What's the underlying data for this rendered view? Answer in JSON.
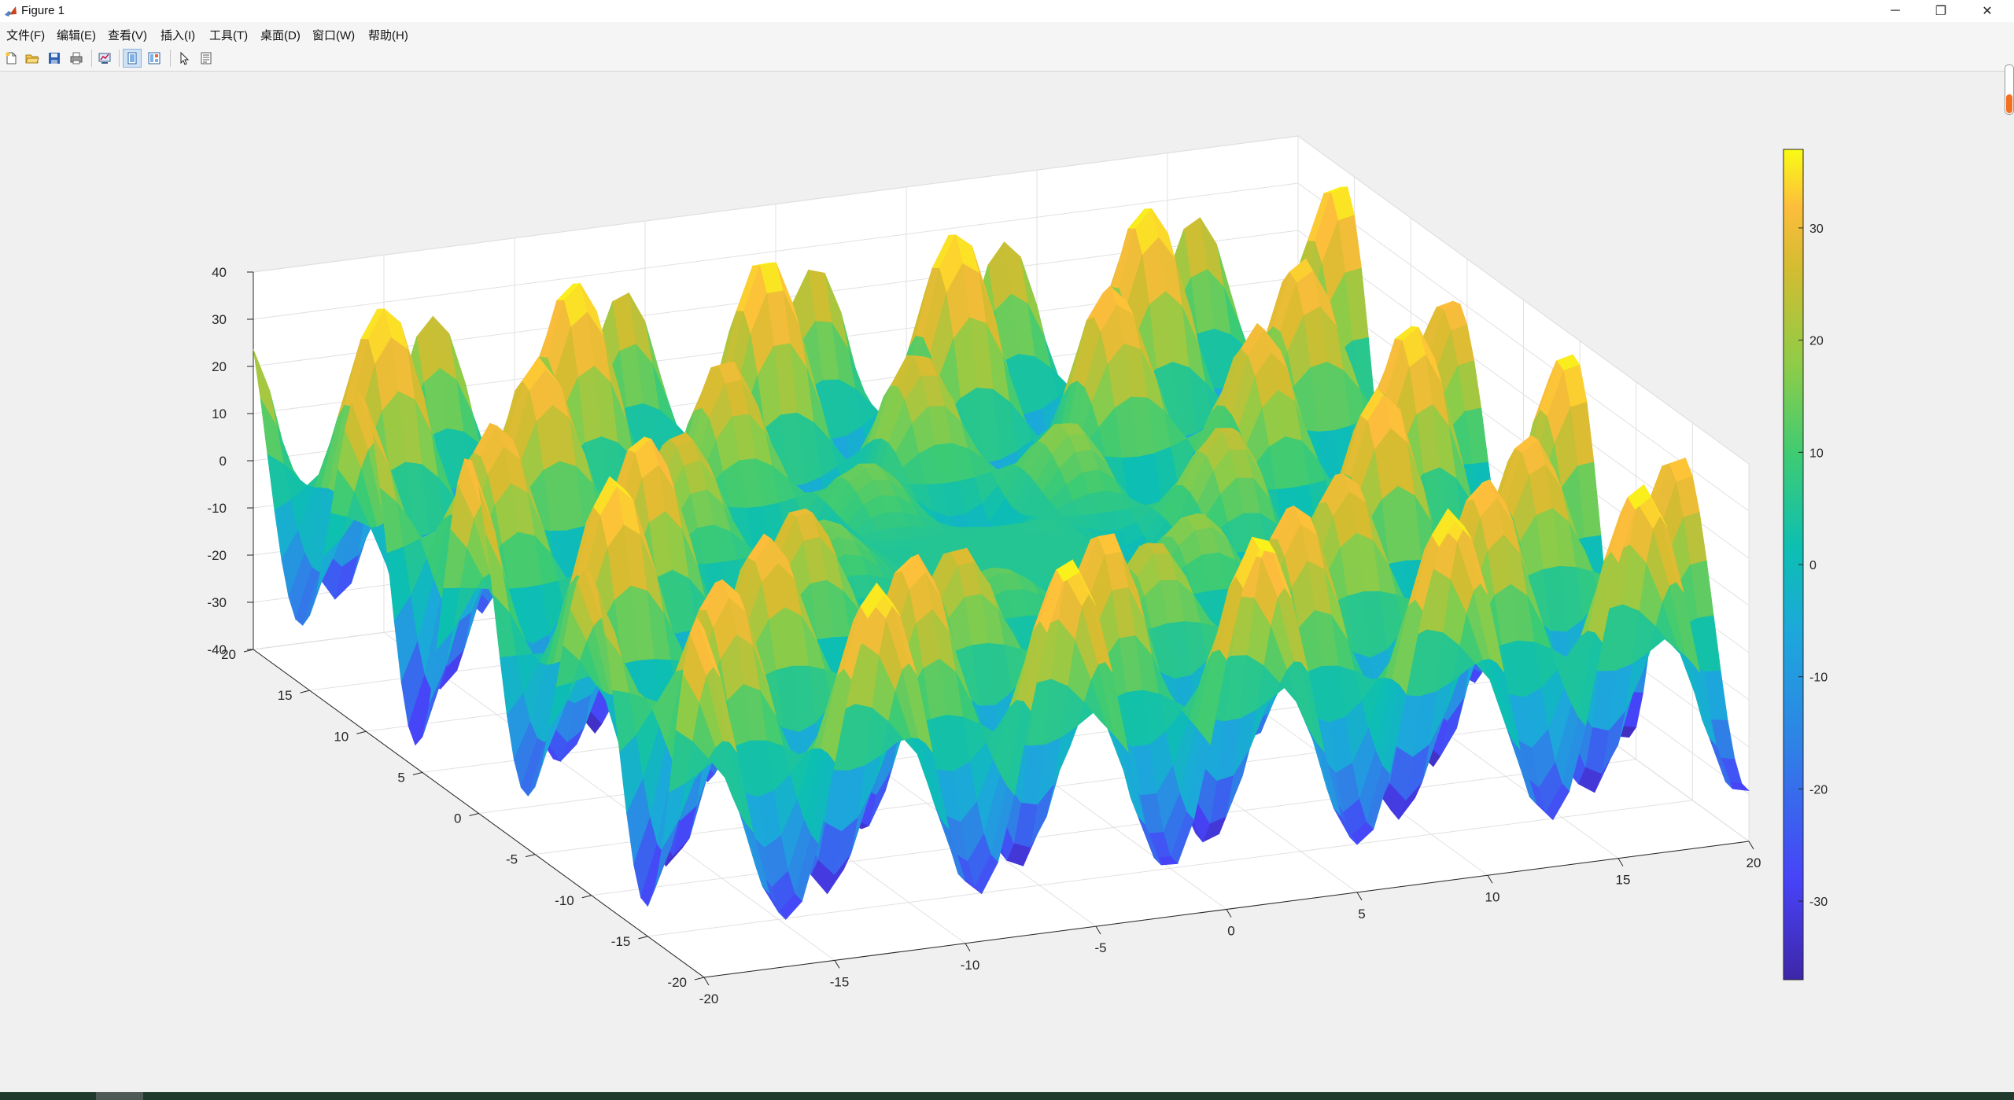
{
  "window": {
    "title": "Figure 1",
    "controls": {
      "minimize": "─",
      "restore": "❐",
      "close": "✕"
    }
  },
  "menu": [
    "文件(F)",
    "编辑(E)",
    "查看(V)",
    "插入(I)",
    "工具(T)",
    "桌面(D)",
    "窗口(W)",
    "帮助(H)"
  ],
  "toolbar": {
    "icons": [
      "new-figure-icon",
      "open-file-icon",
      "save-icon",
      "print-icon",
      "link-plot-icon",
      "hide-plot-tools-icon",
      "show-plot-tools-icon",
      "edit-plot-icon",
      "property-inspector-icon"
    ]
  },
  "colors": {
    "window_bg": "#f0f0f0",
    "colormap": [
      "#3e26a8",
      "#4743f8",
      "#2f81e6",
      "#1ca8db",
      "#0cbfb2",
      "#3dcb74",
      "#8ecc48",
      "#d5bc30",
      "#fdbd3c",
      "#f9fb15"
    ]
  },
  "chart_data": {
    "type": "surface",
    "title": "",
    "xlabel": "",
    "ylabel": "",
    "zlabel": "",
    "xlim": [
      -20,
      20
    ],
    "ylim": [
      -20,
      20
    ],
    "zlim": [
      -40,
      40
    ],
    "x_ticks": [
      -20,
      -15,
      -10,
      -5,
      0,
      5,
      10,
      15,
      20
    ],
    "y_ticks": [
      -20,
      -15,
      -10,
      -5,
      0,
      5,
      10,
      15,
      20
    ],
    "z_ticks": [
      -40,
      -30,
      -20,
      -10,
      0,
      10,
      20,
      30,
      40
    ],
    "grid": true,
    "box": "3-D axes with gray grid on back walls and floor",
    "shading": "interp",
    "colormap": "parula",
    "colorbar": {
      "location": "right",
      "limits": [
        -37,
        37
      ],
      "ticks": [
        -30,
        -20,
        -10,
        0,
        10,
        20,
        30
      ]
    },
    "surface_description_values": {
      "z_range": [
        -37,
        37
      ],
      "peak_count_estimate": 20,
      "center_plateau_z": 0
    }
  }
}
